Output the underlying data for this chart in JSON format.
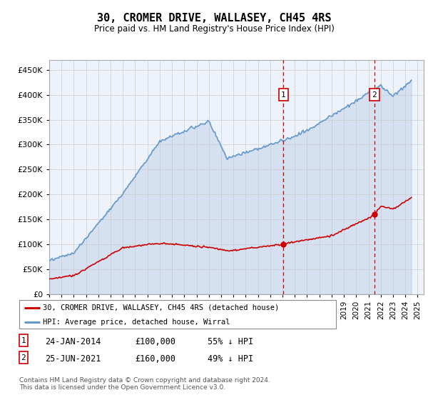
{
  "title": "30, CROMER DRIVE, WALLASEY, CH45 4RS",
  "subtitle": "Price paid vs. HM Land Registry's House Price Index (HPI)",
  "footnote": "Contains HM Land Registry data © Crown copyright and database right 2024.\nThis data is licensed under the Open Government Licence v3.0.",
  "legend_house": "30, CROMER DRIVE, WALLASEY, CH45 4RS (detached house)",
  "legend_hpi": "HPI: Average price, detached house, Wirral",
  "sale1_label": "1",
  "sale1_date": "24-JAN-2014",
  "sale1_price": "£100,000",
  "sale1_hpi": "55% ↓ HPI",
  "sale2_label": "2",
  "sale2_date": "25-JUN-2021",
  "sale2_price": "£160,000",
  "sale2_hpi": "49% ↓ HPI",
  "sale1_year": 2014.07,
  "sale1_value": 100000,
  "sale2_year": 2021.49,
  "sale2_value": 160000,
  "line_house_color": "#cc0000",
  "line_hpi_color": "#6699cc",
  "dashed_color": "#cc0000",
  "ylim": [
    0,
    470000
  ],
  "xlim_start": 1995.0,
  "xlim_end": 2025.5,
  "yticks": [
    0,
    50000,
    100000,
    150000,
    200000,
    250000,
    300000,
    350000,
    400000,
    450000
  ],
  "ylabels": [
    "£0",
    "£50K",
    "£100K",
    "£150K",
    "£200K",
    "£250K",
    "£300K",
    "£350K",
    "£400K",
    "£450K"
  ],
  "xtick_start": 1995,
  "xtick_end": 2026
}
